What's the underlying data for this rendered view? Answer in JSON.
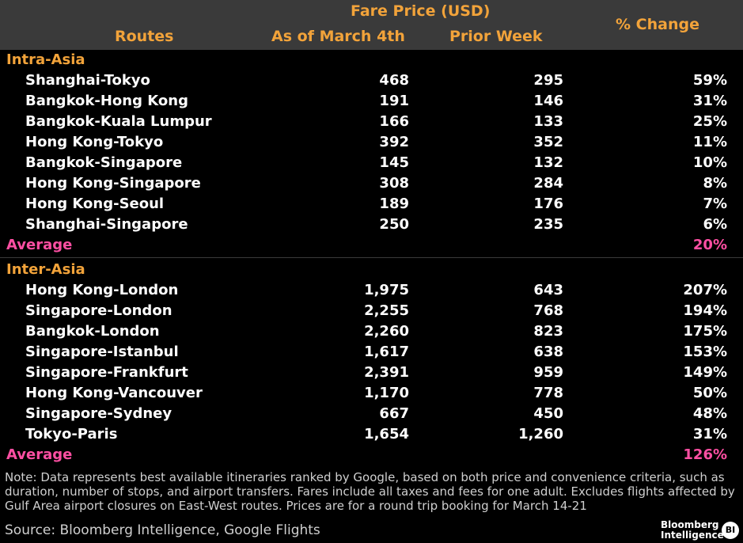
{
  "chart_data": {
    "type": "table",
    "header": {
      "group_label": "Fare Price (USD)",
      "columns": [
        "Routes",
        "As of March 4th",
        "Prior Week",
        "% Change"
      ]
    },
    "sections": [
      {
        "name": "Intra-Asia",
        "rows": [
          {
            "route": "Shanghai-Tokyo",
            "current": "468",
            "prior": "295",
            "change": "59%"
          },
          {
            "route": "Bangkok-Hong Kong",
            "current": "191",
            "prior": "146",
            "change": "31%"
          },
          {
            "route": "Bangkok-Kuala Lumpur",
            "current": "166",
            "prior": "133",
            "change": "25%"
          },
          {
            "route": "Hong Kong-Tokyo",
            "current": "392",
            "prior": "352",
            "change": "11%"
          },
          {
            "route": "Bangkok-Singapore",
            "current": "145",
            "prior": "132",
            "change": "10%"
          },
          {
            "route": "Hong Kong-Singapore",
            "current": "308",
            "prior": "284",
            "change": "8%"
          },
          {
            "route": "Hong Kong-Seoul",
            "current": "189",
            "prior": "176",
            "change": "7%"
          },
          {
            "route": "Shanghai-Singapore",
            "current": "250",
            "prior": "235",
            "change": "6%"
          }
        ],
        "average_label": "Average",
        "average_change": "20%"
      },
      {
        "name": "Inter-Asia",
        "rows": [
          {
            "route": "Hong Kong-London",
            "current": "1,975",
            "prior": "643",
            "change": "207%"
          },
          {
            "route": "Singapore-London",
            "current": "2,255",
            "prior": "768",
            "change": "194%"
          },
          {
            "route": "Bangkok-London",
            "current": "2,260",
            "prior": "823",
            "change": "175%"
          },
          {
            "route": "Singapore-Istanbul",
            "current": "1,617",
            "prior": "638",
            "change": "153%"
          },
          {
            "route": "Singapore-Frankfurt",
            "current": "2,391",
            "prior": "959",
            "change": "149%"
          },
          {
            "route": "Hong Kong-Vancouver",
            "current": "1,170",
            "prior": "778",
            "change": "50%"
          },
          {
            "route": "Singapore-Sydney",
            "current": "667",
            "prior": "450",
            "change": "48%"
          },
          {
            "route": "Tokyo-Paris",
            "current": "1,654",
            "prior": "1,260",
            "change": "31%"
          }
        ],
        "average_label": "Average",
        "average_change": "126%"
      }
    ]
  },
  "note": "Note: Data represents best available itineraries ranked by Google, based on both price and convenience criteria, such as duration, number of stops, and airport transfers. Fares include all taxes and fees for one adult. Excludes flights affected by Gulf Area airport closures on East-West routes. Prices are for a round trip booking for March 14-21",
  "source": "Source: Bloomberg Intelligence, Google Flights",
  "logo": {
    "line1": "Bloomberg",
    "line2": "Intelligence",
    "badge": "BI"
  },
  "colors": {
    "header_text": "#f2a33a",
    "average_text": "#ff4fa3",
    "header_band": "#3a3a3a",
    "background": "#000000"
  }
}
